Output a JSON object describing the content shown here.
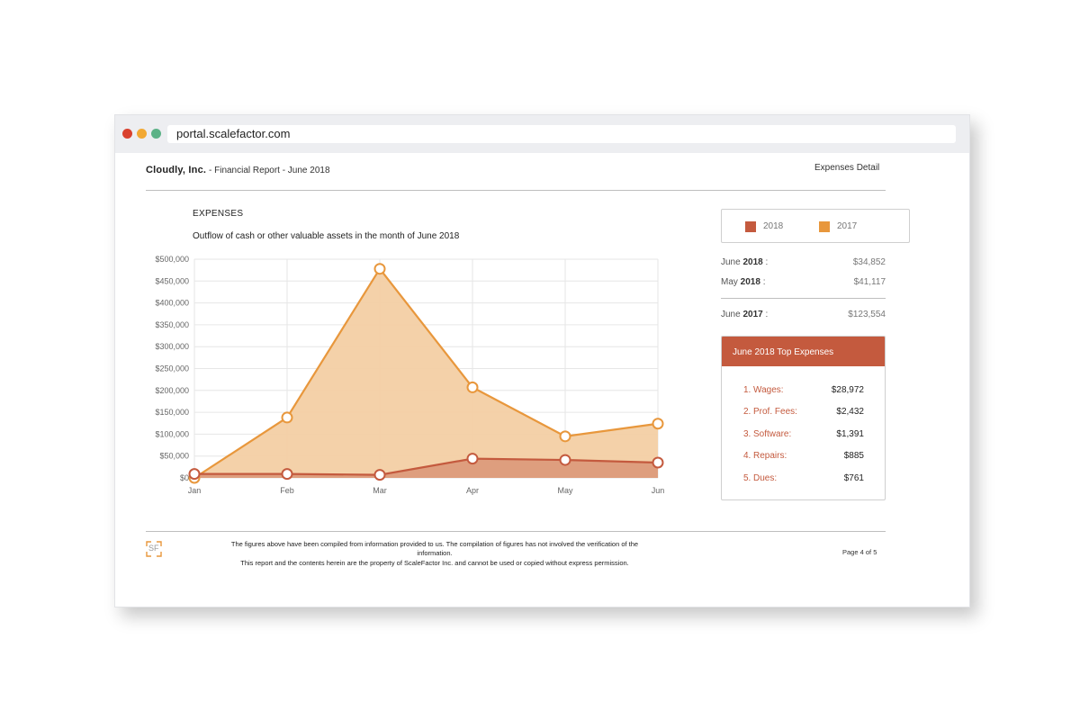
{
  "browser": {
    "url": "portal.scalefactor.com"
  },
  "header": {
    "company": "Cloudly, Inc.",
    "subtitle": " - Financial Report - June 2018",
    "right_label": "Expenses Detail"
  },
  "section": {
    "title": "EXPENSES",
    "description": "Outflow of cash or other valuable assets in the month of June 2018"
  },
  "legend": {
    "items": [
      {
        "label": "2018",
        "color": "#c45a3e"
      },
      {
        "label": "2017",
        "color": "#e8973c"
      }
    ]
  },
  "stats": {
    "rows": [
      {
        "label_pre": "June ",
        "label_bold": "2018",
        "label_post": " :",
        "value": "$34,852"
      },
      {
        "label_pre": "May ",
        "label_bold": "2018",
        "label_post": " :",
        "value": "$41,117"
      },
      {
        "label_pre": "June ",
        "label_bold": "2017",
        "label_post": " :",
        "value": "$123,554"
      }
    ]
  },
  "top_expenses": {
    "title": "June 2018 Top Expenses",
    "items": [
      {
        "num": "1.",
        "name": "Wages:",
        "amount": "$28,972"
      },
      {
        "num": "2.",
        "name": "Prof. Fees:",
        "amount": "$2,432"
      },
      {
        "num": "3.",
        "name": "Software:",
        "amount": "$1,391"
      },
      {
        "num": "4.",
        "name": "Repairs:",
        "amount": "$885"
      },
      {
        "num": "5.",
        "name": "Dues:",
        "amount": "$761"
      }
    ]
  },
  "footer": {
    "logo_text": "SF",
    "disclaimer_line1": "The figures above have been compiled from information provided to us. The compilation of figures has not involved the verification of the information.",
    "disclaimer_line2": "This report and the contents herein are the property of ScaleFactor Inc. and cannot be used or copied without express permission.",
    "page": "Page 4 of 5"
  },
  "chart_data": {
    "type": "area",
    "categories": [
      "Jan",
      "Feb",
      "Mar",
      "Apr",
      "May",
      "Jun"
    ],
    "series": [
      {
        "name": "2017",
        "color": "#e8973c",
        "fill": "#f3cfa4",
        "values": [
          0,
          138000,
          478000,
          207000,
          95000,
          124000
        ]
      },
      {
        "name": "2018",
        "color": "#c45a3e",
        "fill": "#dc9b7b",
        "values": [
          9000,
          9000,
          7000,
          44000,
          41000,
          35000
        ]
      }
    ],
    "ylim": [
      0,
      500000
    ],
    "yticks": [
      "$0",
      "$50,000",
      "$100,000",
      "$150,000",
      "$200,000",
      "$250,000",
      "$300,000",
      "$350,000",
      "$400,000",
      "$450,000",
      "$500,000"
    ],
    "grid": true
  }
}
